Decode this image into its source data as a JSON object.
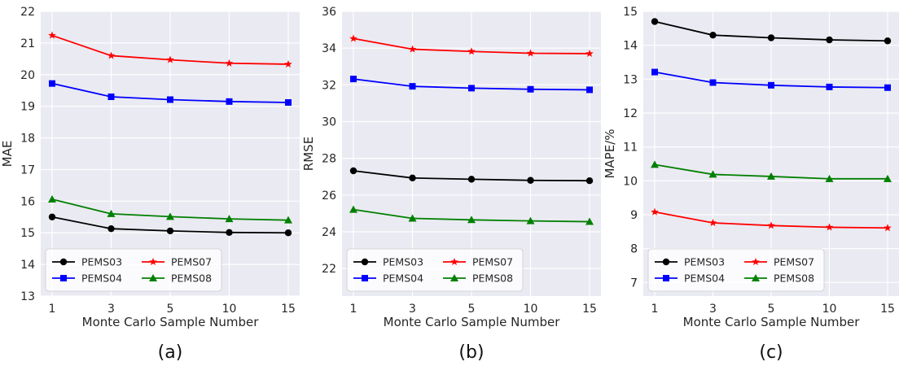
{
  "chart_data": [
    {
      "type": "line",
      "panel_label": "(a)",
      "xlabel": "Monte Carlo Sample Number",
      "ylabel": "MAE",
      "x": [
        1,
        3,
        5,
        10,
        15
      ],
      "x_tick_labels": [
        "1",
        "3",
        "5",
        "10",
        "15"
      ],
      "ylim": [
        13,
        22
      ],
      "y_ticks": [
        13,
        14,
        15,
        16,
        17,
        18,
        19,
        20,
        21,
        22
      ],
      "grid": true,
      "legend": {
        "placement": "lower-left",
        "columns": 2
      },
      "series": [
        {
          "name": "PEMS03",
          "color": "#000000",
          "marker": "circle",
          "values": [
            15.5,
            15.13,
            15.06,
            15.01,
            15.0
          ]
        },
        {
          "name": "PEMS04",
          "color": "#0000ff",
          "marker": "square",
          "values": [
            19.72,
            19.3,
            19.21,
            19.15,
            19.12
          ]
        },
        {
          "name": "PEMS07",
          "color": "#ff0000",
          "marker": "star",
          "values": [
            21.24,
            20.6,
            20.47,
            20.36,
            20.33
          ]
        },
        {
          "name": "PEMS08",
          "color": "#008000",
          "marker": "triangle",
          "values": [
            16.06,
            15.6,
            15.51,
            15.44,
            15.4
          ]
        }
      ]
    },
    {
      "type": "line",
      "panel_label": "(b)",
      "xlabel": "Monte Carlo Sample Number",
      "ylabel": "RMSE",
      "x": [
        1,
        3,
        5,
        10,
        15
      ],
      "x_tick_labels": [
        "1",
        "3",
        "5",
        "10",
        "15"
      ],
      "ylim": [
        20.5,
        36
      ],
      "y_ticks": [
        22,
        24,
        26,
        28,
        30,
        32,
        34,
        36
      ],
      "grid": true,
      "legend": {
        "placement": "lower-left",
        "columns": 2
      },
      "series": [
        {
          "name": "PEMS03",
          "color": "#000000",
          "marker": "circle",
          "values": [
            27.32,
            26.93,
            26.86,
            26.8,
            26.78
          ]
        },
        {
          "name": "PEMS04",
          "color": "#0000ff",
          "marker": "square",
          "values": [
            32.32,
            31.92,
            31.82,
            31.76,
            31.73
          ]
        },
        {
          "name": "PEMS07",
          "color": "#ff0000",
          "marker": "star",
          "values": [
            34.52,
            33.94,
            33.82,
            33.72,
            33.7
          ]
        },
        {
          "name": "PEMS08",
          "color": "#008000",
          "marker": "triangle",
          "values": [
            25.21,
            24.73,
            24.65,
            24.59,
            24.55
          ]
        }
      ]
    },
    {
      "type": "line",
      "panel_label": "(c)",
      "xlabel": "Monte Carlo Sample Number",
      "ylabel": "MAPE/%",
      "x": [
        1,
        3,
        5,
        10,
        15
      ],
      "x_tick_labels": [
        "1",
        "3",
        "5",
        "10",
        "15"
      ],
      "ylim": [
        6.6,
        15
      ],
      "y_ticks": [
        7,
        8,
        9,
        10,
        11,
        12,
        13,
        14,
        15
      ],
      "grid": true,
      "legend": {
        "placement": "lower-left",
        "columns": 2
      },
      "series": [
        {
          "name": "PEMS03",
          "color": "#000000",
          "marker": "circle",
          "values": [
            14.7,
            14.3,
            14.22,
            14.16,
            14.13
          ]
        },
        {
          "name": "PEMS04",
          "color": "#0000ff",
          "marker": "square",
          "values": [
            13.21,
            12.9,
            12.82,
            12.77,
            12.75
          ]
        },
        {
          "name": "PEMS07",
          "color": "#ff0000",
          "marker": "star",
          "values": [
            9.08,
            8.76,
            8.68,
            8.63,
            8.61
          ]
        },
        {
          "name": "PEMS08",
          "color": "#008000",
          "marker": "triangle",
          "values": [
            10.48,
            10.19,
            10.13,
            10.06,
            10.06
          ]
        }
      ]
    }
  ]
}
